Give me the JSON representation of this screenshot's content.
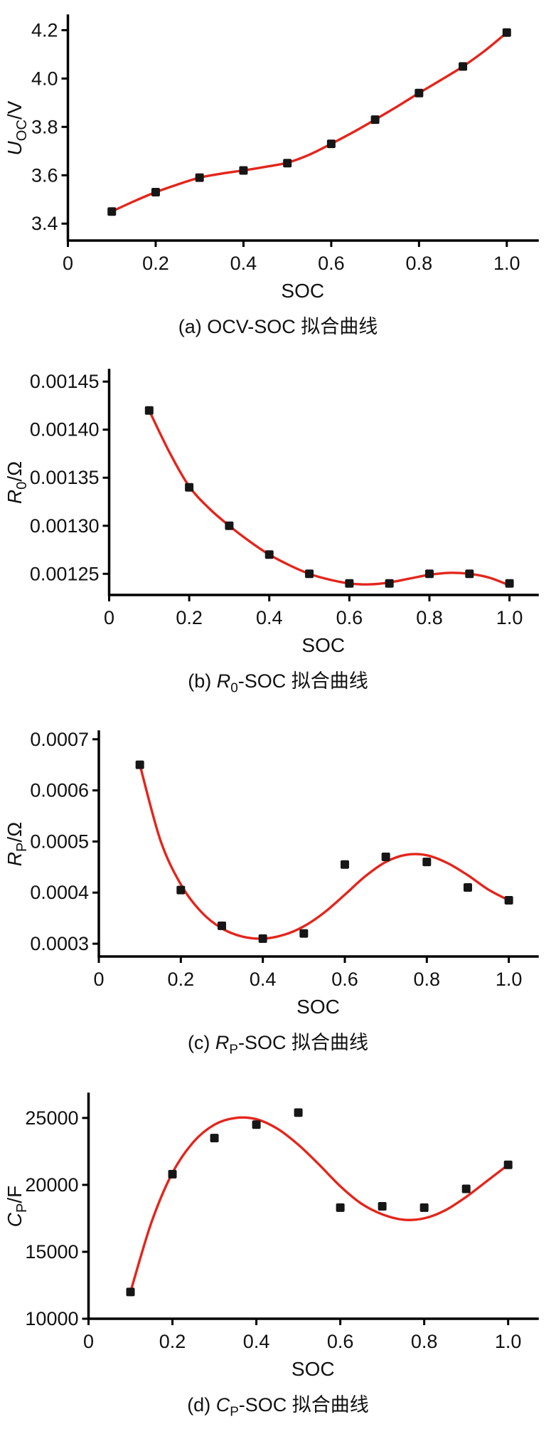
{
  "style": {
    "curve_color": "#e4251b",
    "point_color": "#161616",
    "axis_color": "#000000",
    "text_color": "#111111"
  },
  "chart_data": [
    {
      "id": "a",
      "type": "scatter",
      "title": "",
      "xlabel": "SOC",
      "ylabel": "*U*_{OC}/V",
      "caption": "(a) OCV-SOC 拟合曲线",
      "xlim": [
        0,
        1.07
      ],
      "ylim": [
        3.33,
        4.26
      ],
      "xticks": [
        0,
        0.2,
        0.4,
        0.6,
        0.8,
        1.0
      ],
      "xtick_labels": [
        "0",
        "0.2",
        "0.4",
        "0.6",
        "0.8",
        "1.0"
      ],
      "yticks": [
        3.4,
        3.6,
        3.8,
        4.0,
        4.2
      ],
      "ytick_labels": [
        "3.4",
        "3.6",
        "3.8",
        "4.0",
        "4.2"
      ],
      "soc": [
        0.1,
        0.2,
        0.3,
        0.4,
        0.5,
        0.6,
        0.7,
        0.8,
        0.9,
        1.0
      ],
      "points": [
        3.45,
        3.53,
        3.59,
        3.62,
        3.65,
        3.73,
        3.83,
        3.94,
        4.05,
        4.19
      ],
      "fit_x": [
        0.1,
        0.15,
        0.2,
        0.25,
        0.3,
        0.35,
        0.4,
        0.45,
        0.5,
        0.55,
        0.6,
        0.65,
        0.7,
        0.75,
        0.8,
        0.85,
        0.9,
        0.95,
        1.0
      ],
      "fit_y": [
        3.45,
        3.492,
        3.53,
        3.562,
        3.59,
        3.607,
        3.62,
        3.635,
        3.652,
        3.685,
        3.73,
        3.778,
        3.83,
        3.884,
        3.94,
        3.994,
        4.05,
        4.115,
        4.19
      ]
    },
    {
      "id": "b",
      "type": "scatter",
      "title": "",
      "xlabel": "SOC",
      "ylabel": "*R*_{0}/Ω",
      "caption": "(b) *R*_{0}-SOC 拟合曲线",
      "xlim": [
        0,
        1.07
      ],
      "ylim": [
        0.001228,
        0.001462
      ],
      "xticks": [
        0,
        0.2,
        0.4,
        0.6,
        0.8,
        1.0
      ],
      "xtick_labels": [
        "0",
        "0.2",
        "0.4",
        "0.6",
        "0.8",
        "1.0"
      ],
      "yticks": [
        0.00125,
        0.0013,
        0.00135,
        0.0014,
        0.00145
      ],
      "ytick_labels": [
        "0.00125",
        "0.00130",
        "0.00135",
        "0.00140",
        "0.00145"
      ],
      "soc": [
        0.1,
        0.2,
        0.3,
        0.4,
        0.5,
        0.6,
        0.7,
        0.8,
        0.9,
        1.0
      ],
      "points": [
        0.00142,
        0.00134,
        0.0013,
        0.00127,
        0.00125,
        0.00124,
        0.00124,
        0.00125,
        0.00125,
        0.00124
      ],
      "fit_x": [
        0.1,
        0.15,
        0.2,
        0.25,
        0.3,
        0.35,
        0.4,
        0.45,
        0.5,
        0.55,
        0.6,
        0.65,
        0.7,
        0.75,
        0.8,
        0.85,
        0.9,
        0.95,
        1.0
      ],
      "fit_y": [
        0.00142,
        0.001377,
        0.001341,
        0.001318,
        0.0013,
        0.001284,
        0.00127,
        0.001259,
        0.00125,
        0.001244,
        0.00124,
        0.001239,
        0.001241,
        0.001245,
        0.001249,
        0.001251,
        0.00125,
        0.001246,
        0.001238
      ]
    },
    {
      "id": "c",
      "type": "scatter",
      "title": "",
      "xlabel": "SOC",
      "ylabel": "*R*_{P}/Ω",
      "caption": "(c) *R*_{P}-SOC 拟合曲线",
      "xlim": [
        0,
        1.07
      ],
      "ylim": [
        0.000275,
        0.000715
      ],
      "xticks": [
        0,
        0.2,
        0.4,
        0.6,
        0.8,
        1.0
      ],
      "xtick_labels": [
        "0",
        "0.2",
        "0.4",
        "0.6",
        "0.8",
        "1.0"
      ],
      "yticks": [
        0.0003,
        0.0004,
        0.0005,
        0.0006,
        0.0007
      ],
      "ytick_labels": [
        "0.0003",
        "0.0004",
        "0.0005",
        "0.0006",
        "0.0007"
      ],
      "soc": [
        0.1,
        0.2,
        0.3,
        0.4,
        0.5,
        0.6,
        0.7,
        0.8,
        0.9,
        1.0
      ],
      "points": [
        0.00065,
        0.000405,
        0.000335,
        0.00031,
        0.00032,
        0.000455,
        0.00047,
        0.00046,
        0.00041,
        0.000385
      ],
      "fit_x": [
        0.1,
        0.15,
        0.2,
        0.25,
        0.3,
        0.35,
        0.4,
        0.45,
        0.5,
        0.55,
        0.6,
        0.65,
        0.7,
        0.75,
        0.8,
        0.85,
        0.9,
        0.95,
        1.0
      ],
      "fit_y": [
        0.00065,
        0.000503,
        0.000416,
        0.000362,
        0.00033,
        0.000314,
        0.00031,
        0.000317,
        0.000334,
        0.000361,
        0.000396,
        0.000432,
        0.00046,
        0.000474,
        0.000473,
        0.000458,
        0.000434,
        0.000406,
        0.000385
      ]
    },
    {
      "id": "d",
      "type": "scatter",
      "title": "",
      "xlabel": "SOC",
      "ylabel": "*C*_{P}/F",
      "caption": "(d) *C*_{P}-SOC 拟合曲线",
      "xlim": [
        0,
        1.07
      ],
      "ylim": [
        10000,
        26800
      ],
      "xticks": [
        0,
        0.2,
        0.4,
        0.6,
        0.8,
        1.0
      ],
      "xtick_labels": [
        "0",
        "0.2",
        "0.4",
        "0.6",
        "0.8",
        "1.0"
      ],
      "yticks": [
        10000,
        15000,
        20000,
        25000
      ],
      "ytick_labels": [
        "10000",
        "15000",
        "20000",
        "25000"
      ],
      "soc": [
        0.1,
        0.2,
        0.3,
        0.4,
        0.5,
        0.6,
        0.7,
        0.8,
        0.9,
        1.0
      ],
      "points": [
        12000,
        20800,
        23500,
        24500,
        25400,
        18300,
        18400,
        18300,
        19700,
        21500
      ],
      "fit_x": [
        0.1,
        0.15,
        0.2,
        0.25,
        0.3,
        0.35,
        0.4,
        0.45,
        0.5,
        0.55,
        0.6,
        0.65,
        0.7,
        0.75,
        0.8,
        0.85,
        0.9,
        0.95,
        1.0
      ],
      "fit_y": [
        12000,
        17200,
        20900,
        23200,
        24500,
        25000,
        24900,
        24200,
        23000,
        21500,
        19900,
        18600,
        17800,
        17400,
        17500,
        18100,
        19100,
        20300,
        21500
      ]
    }
  ]
}
